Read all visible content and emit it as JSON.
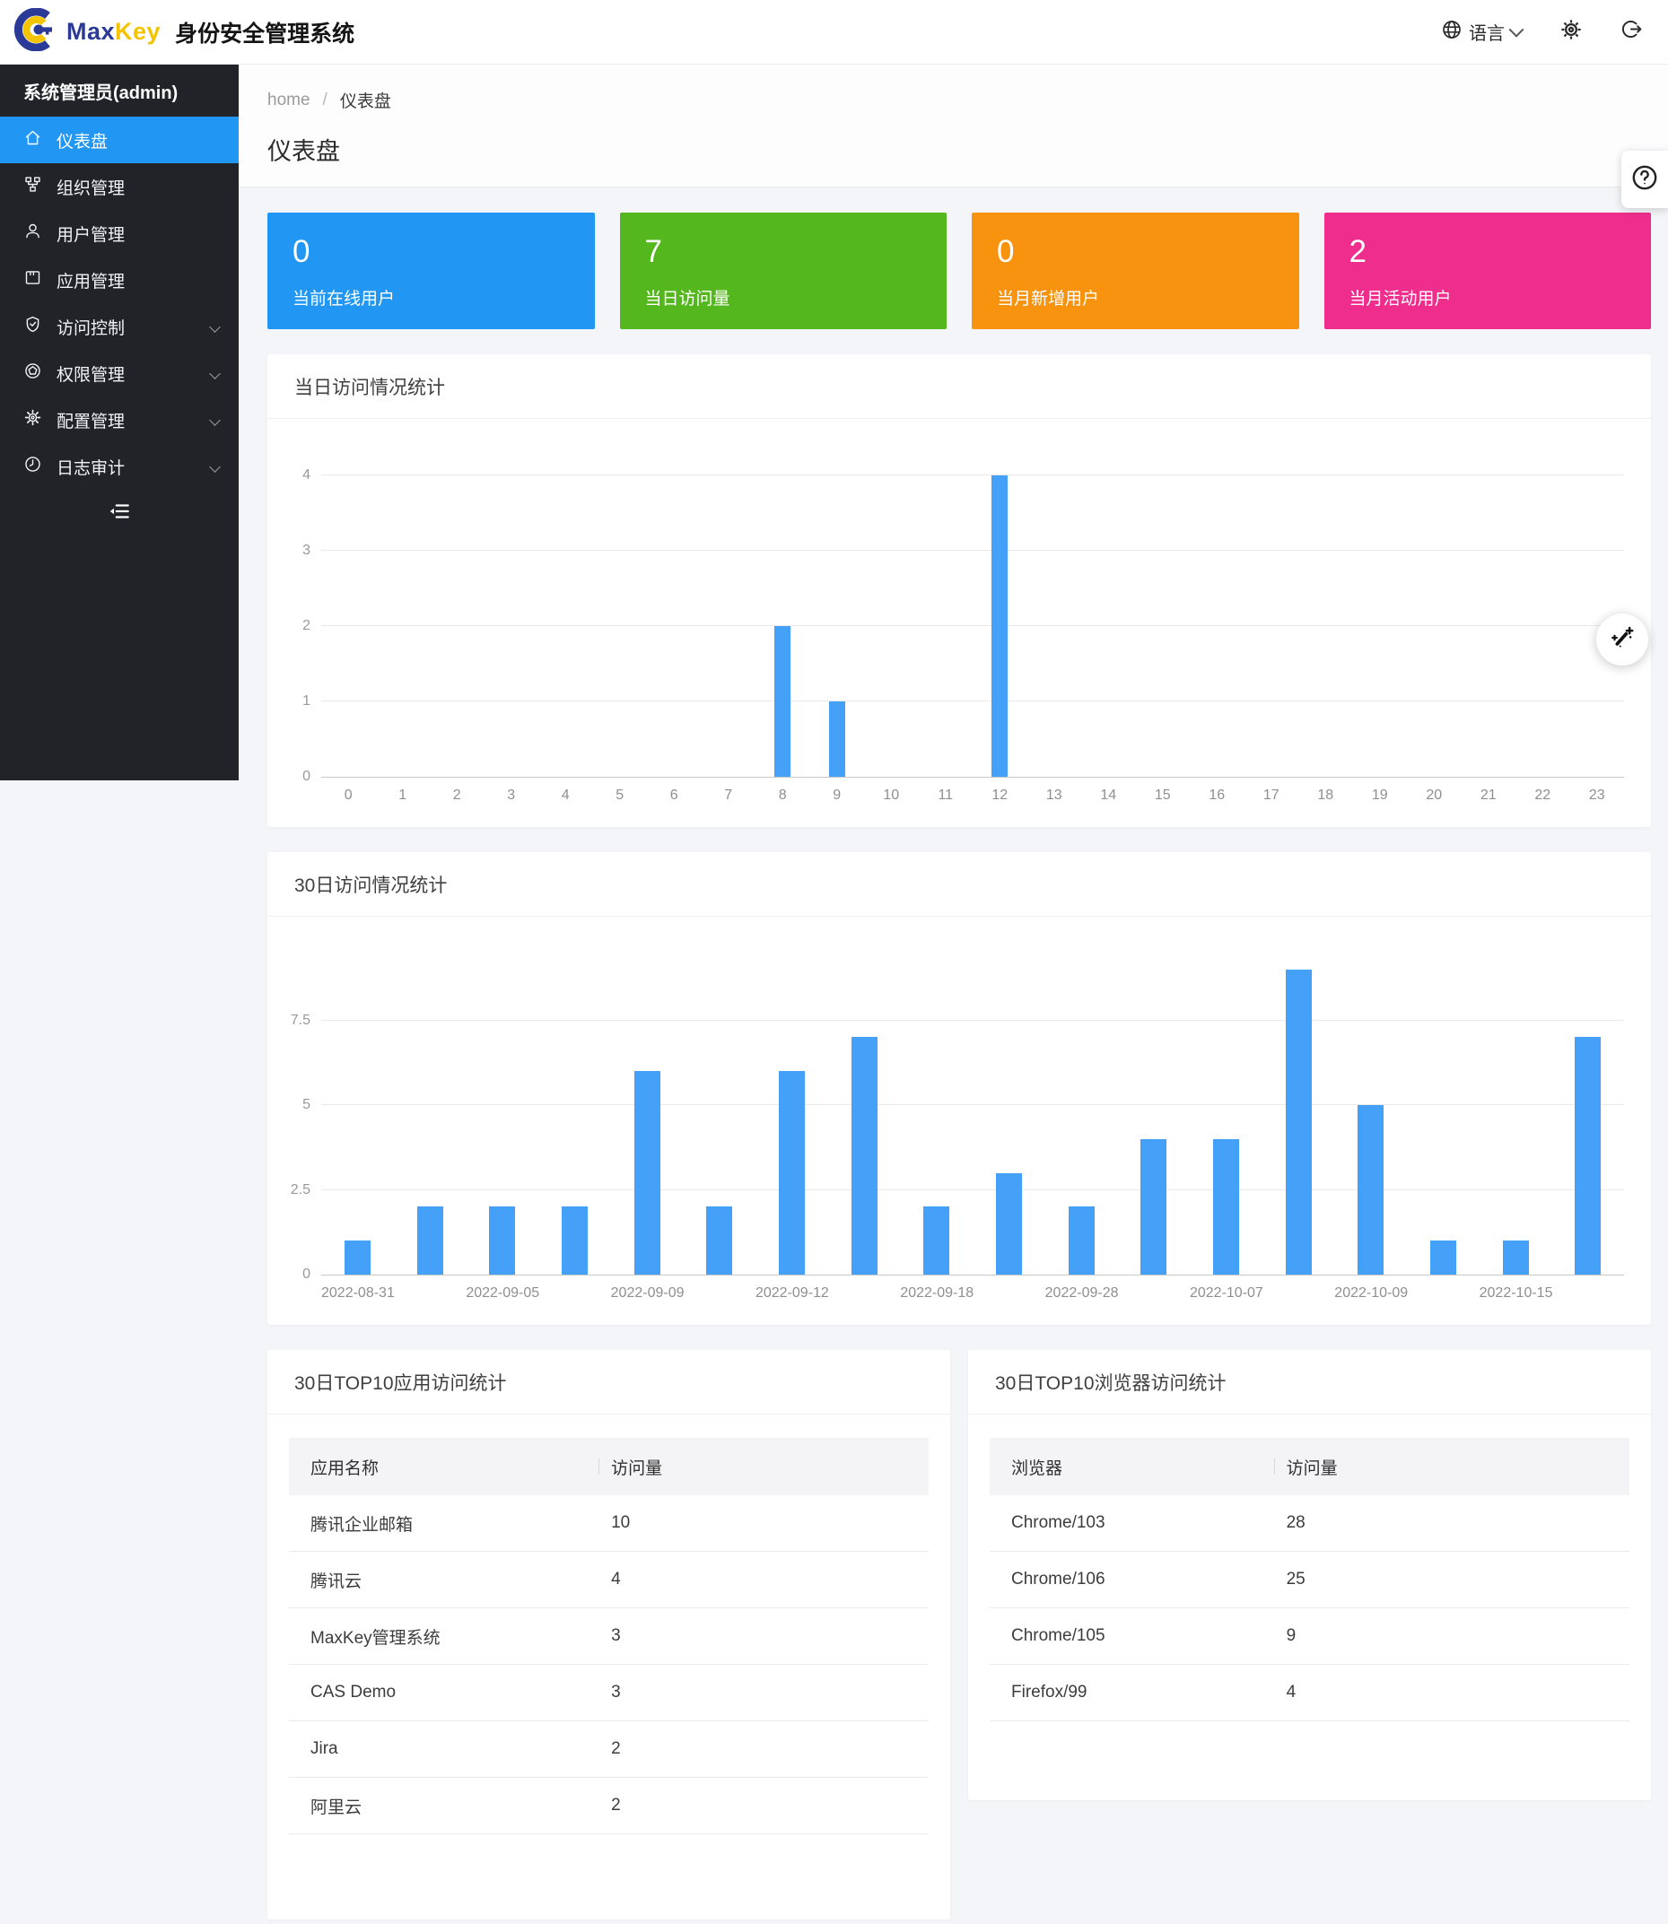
{
  "header": {
    "brand_max": "Max",
    "brand_key": "Key",
    "brand_title": "身份安全管理系统",
    "language_label": "语言"
  },
  "sidebar": {
    "user": "系统管理员(admin)",
    "items": [
      {
        "key": "dashboard",
        "label": "仪表盘",
        "icon": "home-icon",
        "active": true,
        "chevron": false
      },
      {
        "key": "organization",
        "label": "组织管理",
        "icon": "org-icon",
        "active": false,
        "chevron": false
      },
      {
        "key": "users",
        "label": "用户管理",
        "icon": "user-icon",
        "active": false,
        "chevron": false
      },
      {
        "key": "apps",
        "label": "应用管理",
        "icon": "app-icon",
        "active": false,
        "chevron": false
      },
      {
        "key": "access",
        "label": "访问控制",
        "icon": "shield-icon",
        "active": false,
        "chevron": true
      },
      {
        "key": "permissions",
        "label": "权限管理",
        "icon": "permission-icon",
        "active": false,
        "chevron": true
      },
      {
        "key": "config",
        "label": "配置管理",
        "icon": "gear-icon",
        "active": false,
        "chevron": true
      },
      {
        "key": "logs",
        "label": "日志审计",
        "icon": "clock-icon",
        "active": false,
        "chevron": true
      }
    ]
  },
  "breadcrumb": {
    "home": "home",
    "sep": "/",
    "current": "仪表盘"
  },
  "page_title": "仪表盘",
  "colors": {
    "sidebar_active": "#2196f3",
    "bar_color": "#45a1f8"
  },
  "stat_cards": [
    {
      "value": "0",
      "label": "当前在线用户",
      "color": "#2196f3"
    },
    {
      "value": "7",
      "label": "当日访问量",
      "color": "#54b71d"
    },
    {
      "value": "0",
      "label": "当月新增用户",
      "color": "#f7930e"
    },
    {
      "value": "2",
      "label": "当月活动用户",
      "color": "#ee2d8c"
    }
  ],
  "chart_data": [
    {
      "type": "bar",
      "title": "当日访问情况统计",
      "categories": [
        "0",
        "1",
        "2",
        "3",
        "4",
        "5",
        "6",
        "7",
        "8",
        "9",
        "10",
        "11",
        "12",
        "13",
        "14",
        "15",
        "16",
        "17",
        "18",
        "19",
        "20",
        "21",
        "22",
        "23"
      ],
      "values": [
        0,
        0,
        0,
        0,
        0,
        0,
        0,
        0,
        2,
        1,
        0,
        0,
        4,
        0,
        0,
        0,
        0,
        0,
        0,
        0,
        0,
        0,
        0,
        0
      ],
      "xlabel": "",
      "ylabel": "",
      "yticks": [
        0,
        1,
        2,
        3,
        4
      ],
      "ylim": [
        0,
        4.76
      ],
      "grid": true,
      "legend": "none"
    },
    {
      "type": "bar",
      "title": "30日访问情况统计",
      "categories": [
        "2022-08-31",
        "",
        "2022-09-05",
        "",
        "2022-09-09",
        "",
        "2022-09-12",
        "",
        "2022-09-18",
        "",
        "2022-09-28",
        "",
        "2022-10-07",
        "",
        "2022-10-09",
        "",
        "2022-10-15",
        ""
      ],
      "values": [
        1,
        2,
        2,
        2,
        6,
        2,
        6,
        7,
        2,
        3,
        2,
        4,
        4,
        9,
        5,
        1,
        1,
        7
      ],
      "xlabel": "",
      "ylabel": "",
      "yticks": [
        0,
        2.5,
        5,
        7.5
      ],
      "ylim": [
        0,
        9.52
      ],
      "grid": true,
      "legend": "none"
    }
  ],
  "tables": [
    {
      "title": "30日TOP10应用访问统计",
      "columns": [
        "应用名称",
        "访问量"
      ],
      "rows": [
        [
          "腾讯企业邮箱",
          "10"
        ],
        [
          "腾讯云",
          "4"
        ],
        [
          "MaxKey管理系统",
          "3"
        ],
        [
          "CAS Demo",
          "3"
        ],
        [
          "Jira",
          "2"
        ],
        [
          "阿里云",
          "2"
        ]
      ]
    },
    {
      "title": "30日TOP10浏览器访问统计",
      "columns": [
        "浏览器",
        "访问量"
      ],
      "rows": [
        [
          "Chrome/103",
          "28"
        ],
        [
          "Chrome/106",
          "25"
        ],
        [
          "Chrome/105",
          "9"
        ],
        [
          "Firefox/99",
          "4"
        ]
      ]
    }
  ]
}
